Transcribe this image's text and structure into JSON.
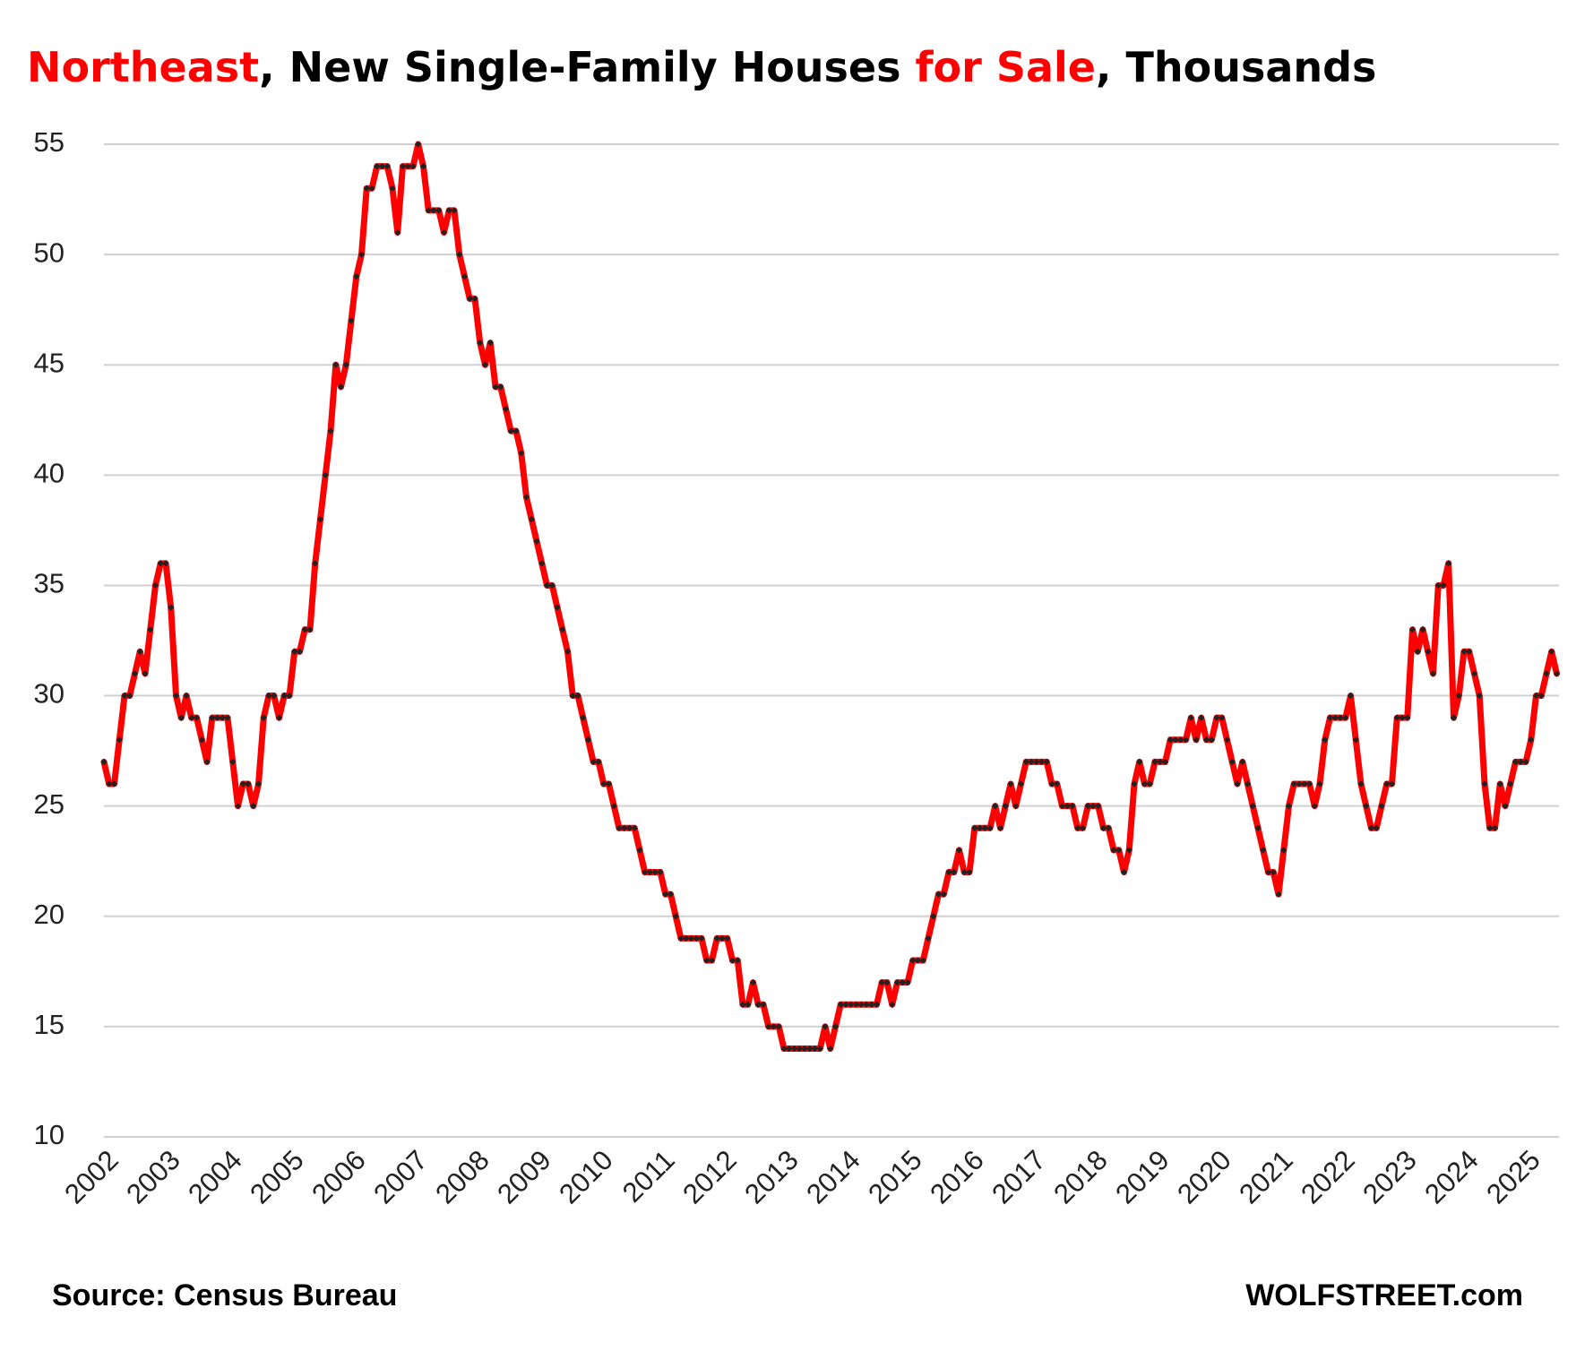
{
  "chart_data": {
    "type": "line",
    "title_parts": [
      {
        "text": "Northeast",
        "color": "#ff0000"
      },
      {
        "text": ", New Single-Family Houses ",
        "color": "#000000"
      },
      {
        "text": "for Sale",
        "color": "#ff0000"
      },
      {
        "text": ", Thousands",
        "color": "#000000"
      }
    ],
    "source": "Source: Census Bureau",
    "credit": "WOLFSTREET.com",
    "categories": [
      "2002",
      null,
      null,
      null,
      null,
      null,
      null,
      null,
      null,
      null,
      null,
      null,
      "2003",
      null,
      null,
      null,
      null,
      null,
      null,
      null,
      null,
      null,
      null,
      null,
      "2004",
      null,
      null,
      null,
      null,
      null,
      null,
      null,
      null,
      null,
      null,
      null,
      "2005",
      null,
      null,
      null,
      null,
      null,
      null,
      null,
      null,
      null,
      null,
      null,
      "2006",
      null,
      null,
      null,
      null,
      null,
      null,
      null,
      null,
      null,
      null,
      null,
      "2007",
      null,
      null,
      null,
      null,
      null,
      null,
      null,
      null,
      null,
      null,
      null,
      "2008",
      null,
      null,
      null,
      null,
      null,
      null,
      null,
      null,
      null,
      null,
      null,
      "2009",
      null,
      null,
      null,
      null,
      null,
      null,
      null,
      null,
      null,
      null,
      null,
      "2010",
      null,
      null,
      null,
      null,
      null,
      null,
      null,
      null,
      null,
      null,
      null,
      "2011",
      null,
      null,
      null,
      null,
      null,
      null,
      null,
      null,
      null,
      null,
      null,
      "2012",
      null,
      null,
      null,
      null,
      null,
      null,
      null,
      null,
      null,
      null,
      null,
      "2013",
      null,
      null,
      null,
      null,
      null,
      null,
      null,
      null,
      null,
      null,
      null,
      "2014",
      null,
      null,
      null,
      null,
      null,
      null,
      null,
      null,
      null,
      null,
      null,
      "2015",
      null,
      null,
      null,
      null,
      null,
      null,
      null,
      null,
      null,
      null,
      null,
      "2016",
      null,
      null,
      null,
      null,
      null,
      null,
      null,
      null,
      null,
      null,
      null,
      "2017",
      null,
      null,
      null,
      null,
      null,
      null,
      null,
      null,
      null,
      null,
      null,
      "2018",
      null,
      null,
      null,
      null,
      null,
      null,
      null,
      null,
      null,
      null,
      null,
      "2019",
      null,
      null,
      null,
      null,
      null,
      null,
      null,
      null,
      null,
      null,
      null,
      "2020",
      null,
      null,
      null,
      null,
      null,
      null,
      null,
      null,
      null,
      null,
      null,
      "2021",
      null,
      null,
      null,
      null,
      null,
      null,
      null,
      null,
      null,
      null,
      null,
      "2022",
      null,
      null,
      null,
      null,
      null,
      null,
      null,
      null,
      null,
      null,
      null,
      "2023",
      null,
      null,
      null,
      null,
      null,
      null,
      null,
      null,
      null,
      null,
      null,
      "2024",
      null,
      null,
      null,
      null,
      null,
      null,
      null,
      null,
      null,
      null,
      null,
      "2025",
      null,
      null,
      null,
      null,
      null,
      null
    ],
    "series": [
      {
        "color": "#ff0000",
        "marker_color": "#222222",
        "values": [
          27,
          26,
          26,
          28,
          30,
          30,
          31,
          32,
          31,
          33,
          35,
          36,
          36,
          34,
          30,
          29,
          30,
          29,
          29,
          28,
          27,
          29,
          29,
          29,
          29,
          27,
          25,
          26,
          26,
          25,
          26,
          29,
          30,
          30,
          29,
          30,
          30,
          32,
          32,
          33,
          33,
          36,
          38,
          40,
          42,
          45,
          44,
          45,
          47,
          49,
          50,
          53,
          53,
          54,
          54,
          54,
          53,
          51,
          54,
          54,
          54,
          55,
          54,
          52,
          52,
          52,
          51,
          52,
          52,
          50,
          49,
          48,
          48,
          46,
          45,
          46,
          44,
          44,
          43,
          42,
          42,
          41,
          39,
          38,
          37,
          36,
          35,
          35,
          34,
          33,
          32,
          30,
          30,
          29,
          28,
          27,
          27,
          26,
          26,
          25,
          24,
          24,
          24,
          24,
          23,
          22,
          22,
          22,
          22,
          21,
          21,
          20,
          19,
          19,
          19,
          19,
          19,
          18,
          18,
          19,
          19,
          19,
          18,
          18,
          16,
          16,
          17,
          16,
          16,
          15,
          15,
          15,
          14,
          14,
          14,
          14,
          14,
          14,
          14,
          14,
          15,
          14,
          15,
          16,
          16,
          16,
          16,
          16,
          16,
          16,
          16,
          17,
          17,
          16,
          17,
          17,
          17,
          18,
          18,
          18,
          19,
          20,
          21,
          21,
          22,
          22,
          23,
          22,
          22,
          24,
          24,
          24,
          24,
          25,
          24,
          25,
          26,
          25,
          26,
          27,
          27,
          27,
          27,
          27,
          26,
          26,
          25,
          25,
          25,
          24,
          24,
          25,
          25,
          25,
          24,
          24,
          23,
          23,
          22,
          23,
          26,
          27,
          26,
          26,
          27,
          27,
          27,
          28,
          28,
          28,
          28,
          29,
          28,
          29,
          28,
          28,
          29,
          29,
          28,
          27,
          26,
          27,
          26,
          25,
          24,
          23,
          22,
          22,
          21,
          23,
          25,
          26,
          26,
          26,
          26,
          25,
          26,
          28,
          29,
          29,
          29,
          29,
          30,
          28,
          26,
          25,
          24,
          24,
          25,
          26,
          26,
          29,
          29,
          29,
          33,
          32,
          33,
          32,
          31,
          35,
          35,
          36,
          29,
          30,
          32,
          32,
          31,
          30,
          26,
          24,
          24,
          26,
          25,
          26,
          27,
          27,
          27,
          28,
          30,
          30,
          31,
          32,
          31
        ]
      }
    ],
    "ylim": [
      10,
      55
    ],
    "yticks": [
      10,
      15,
      20,
      25,
      30,
      35,
      40,
      45,
      50,
      55
    ],
    "grid": true
  }
}
